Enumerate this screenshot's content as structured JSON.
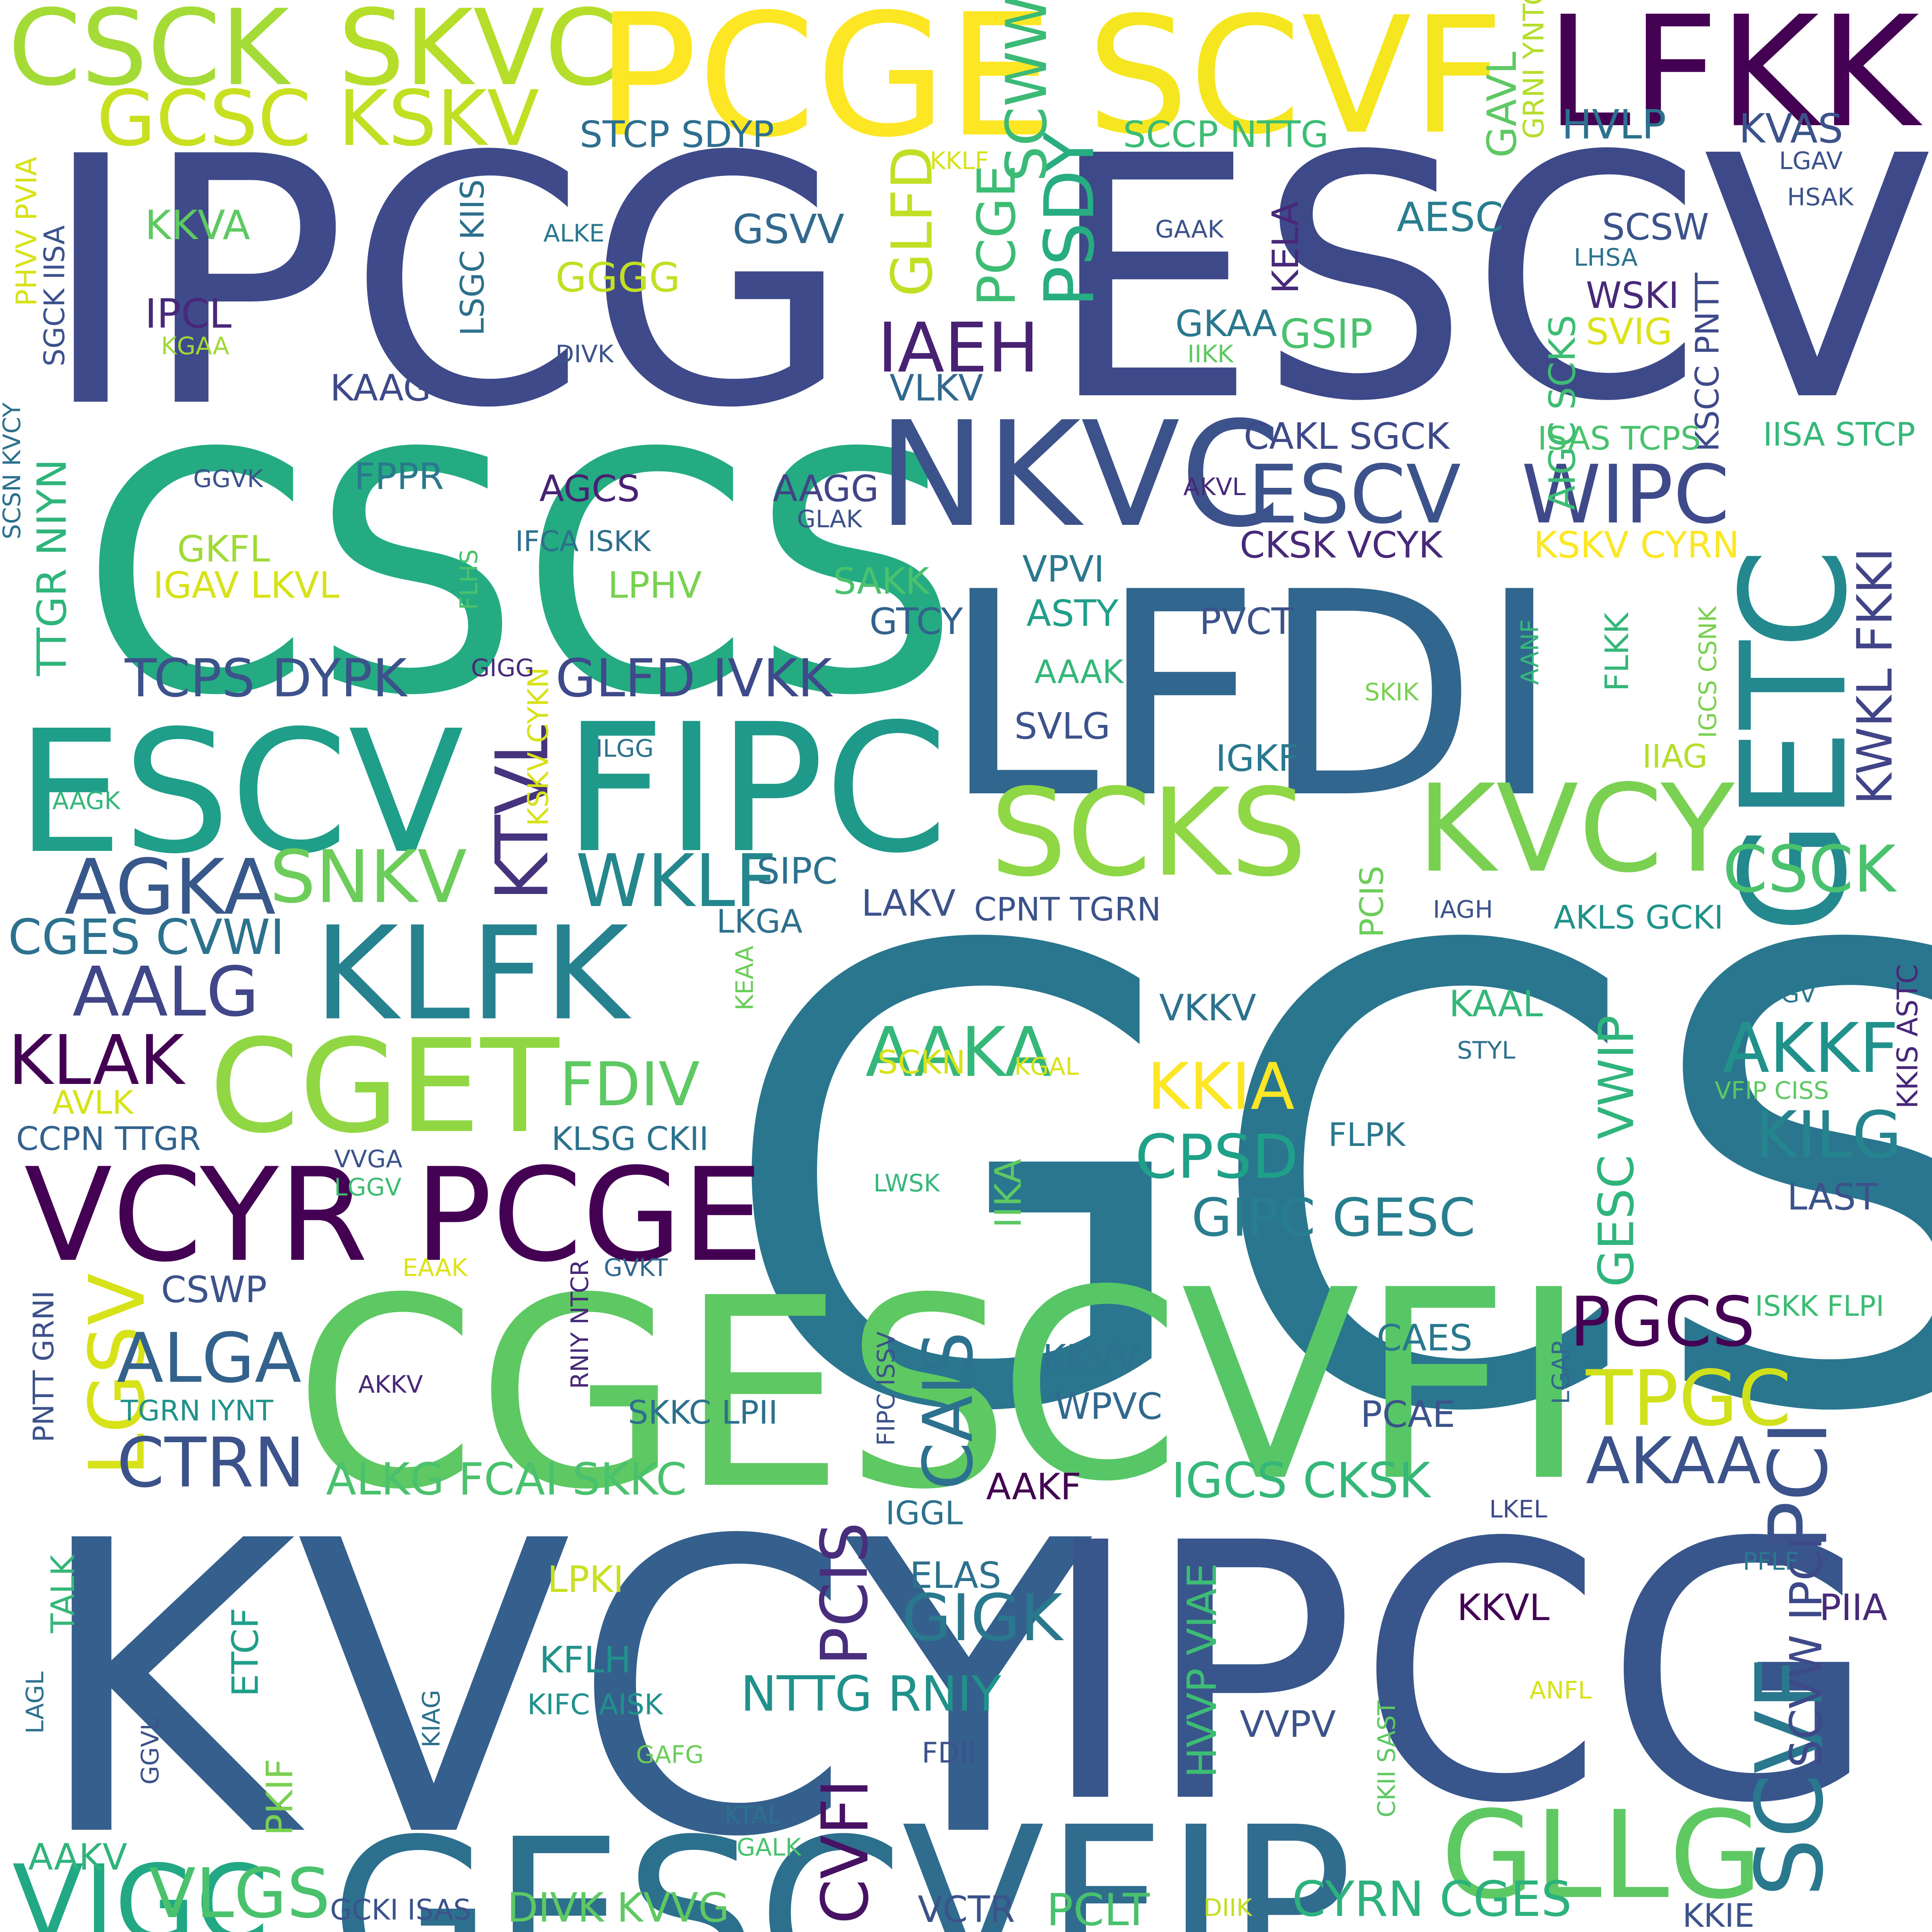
{
  "words": [
    {
      "text": "GCSC",
      "color": "#2a768e"
    },
    {
      "text": "KVCY",
      "color": "#355f8d"
    },
    {
      "text": "IPCG",
      "color": "#3e4a89"
    },
    {
      "text": "IPCG",
      "color": "#39568c"
    },
    {
      "text": "ESCV",
      "color": "#3e4989"
    },
    {
      "text": "CSCS",
      "color": "#25ab82"
    },
    {
      "text": "LFDI",
      "color": "#31668e"
    },
    {
      "text": "CGES",
      "color": "#5ec962"
    },
    {
      "text": "CVFI",
      "color": "#56c667"
    },
    {
      "text": "GESC",
      "color": "#2d708e"
    },
    {
      "text": "VFIP",
      "color": "#2f6c8e"
    },
    {
      "text": "PCGE",
      "color": "#fde725"
    },
    {
      "text": "SCVF",
      "color": "#f6e620"
    },
    {
      "text": "LFKK",
      "color": "#440154"
    },
    {
      "text": "CSCK",
      "color": "#a5db36"
    },
    {
      "text": "SKVC",
      "color": "#b5de2b"
    },
    {
      "text": "ESCV",
      "color": "#1f9e89"
    },
    {
      "text": "FIPC",
      "color": "#1f998a"
    },
    {
      "text": "NKVC",
      "color": "#3b528b"
    },
    {
      "text": "GETC",
      "color": "#23898e"
    },
    {
      "text": "SCKS",
      "color": "#8fd744"
    },
    {
      "text": "KVCY",
      "color": "#7ad151"
    },
    {
      "text": "KLFK",
      "color": "#26828e"
    },
    {
      "text": "CGET",
      "color": "#90d743"
    },
    {
      "text": "VCYR",
      "color": "#440154"
    },
    {
      "text": "PCGE",
      "color": "#440154"
    },
    {
      "text": "GLLG",
      "color": "#5ec962"
    },
    {
      "text": "VIGC",
      "color": "#22a884"
    },
    {
      "text": "SCVF",
      "color": "#2a788e"
    },
    {
      "text": "IPCI",
      "color": "#3b528b"
    },
    {
      "text": "ESCV",
      "color": "#3b528b"
    },
    {
      "text": "WIPC",
      "color": "#3e4a89"
    },
    {
      "text": "GCSC",
      "color": "#c8e020"
    },
    {
      "text": "KSKV",
      "color": "#c2df23"
    },
    {
      "text": "AGKA",
      "color": "#38588c"
    },
    {
      "text": "SNKV",
      "color": "#6ccd5a"
    },
    {
      "text": "WKLF",
      "color": "#24878e"
    },
    {
      "text": "KTVL",
      "color": "#46337e"
    },
    {
      "text": "PSDY",
      "color": "#27ad81"
    },
    {
      "text": "SCWW",
      "color": "#3aba76"
    },
    {
      "text": "GLFD",
      "color": "#c0df25"
    },
    {
      "text": "PCGE",
      "color": "#3dbc74"
    },
    {
      "text": "IAEH",
      "color": "#482173"
    },
    {
      "text": "AALG",
      "color": "#404688"
    },
    {
      "text": "KLAK",
      "color": "#440154"
    },
    {
      "text": "LGSV",
      "color": "#d8e219"
    },
    {
      "text": "ALGA",
      "color": "#33638d"
    },
    {
      "text": "CTRN",
      "color": "#3b528b"
    },
    {
      "text": "AAKA",
      "color": "#35b779"
    },
    {
      "text": "FDIV",
      "color": "#5ec962"
    },
    {
      "text": "KKIA",
      "color": "#fde725"
    },
    {
      "text": "CPSD",
      "color": "#1fa088"
    },
    {
      "text": "GIPC GESC",
      "color": "#287d8e"
    },
    {
      "text": "TPGC",
      "color": "#d0e11c"
    },
    {
      "text": "PGCS",
      "color": "#440154"
    },
    {
      "text": "CAIS",
      "color": "#2c728e"
    },
    {
      "text": "PCIS",
      "color": "#472d7b"
    },
    {
      "text": "CVFI",
      "color": "#471164"
    },
    {
      "text": "GIGK",
      "color": "#2a788e"
    },
    {
      "text": "NTTG RNIY",
      "color": "#21918c"
    },
    {
      "text": "AKKF",
      "color": "#21918c"
    },
    {
      "text": "KILG",
      "color": "#25848e"
    },
    {
      "text": "AKAA",
      "color": "#3b528b"
    },
    {
      "text": "CSCK",
      "color": "#4ac16d"
    },
    {
      "text": "KWKL FKKI",
      "color": "#414487"
    },
    {
      "text": "GESC VWIP",
      "color": "#2fb47c"
    },
    {
      "text": "SCVW IPCI",
      "color": "#3e4989"
    },
    {
      "text": "HVVP VIAE",
      "color": "#3dbc74"
    },
    {
      "text": "TCPS DYPK",
      "color": "#3b528b"
    },
    {
      "text": "GLFD IVKK",
      "color": "#3e4a89"
    },
    {
      "text": "CGES CVWI",
      "color": "#2c728e"
    },
    {
      "text": "ALKG FCAI SKKC",
      "color": "#4ac16d"
    },
    {
      "text": "IGCS CKSK",
      "color": "#35b779"
    },
    {
      "text": "CYRN CGES",
      "color": "#2db27d"
    },
    {
      "text": "DIVK KVVG",
      "color": "#5ec962"
    },
    {
      "text": "VLGS",
      "color": "#4ac16d"
    },
    {
      "text": "PCLT",
      "color": "#4ac16d"
    },
    {
      "text": "CKSK VCYK",
      "color": "#482878"
    },
    {
      "text": "KSKV CYRN",
      "color": "#fde725"
    },
    {
      "text": "CAKL SGCK",
      "color": "#3e4989"
    },
    {
      "text": "AIGC SCKS",
      "color": "#3dbc74"
    },
    {
      "text": "STCP SDYP",
      "color": "#2e6e8e"
    },
    {
      "text": "SCCP NTTG",
      "color": "#3dbc74"
    },
    {
      "text": "HVLP",
      "color": "#2c728e"
    },
    {
      "text": "KVAS",
      "color": "#3b528b"
    },
    {
      "text": "GAVL",
      "color": "#5ec962"
    },
    {
      "text": "GRNI YNTC",
      "color": "#b5de2b"
    },
    {
      "text": "AESC",
      "color": "#287d8e"
    },
    {
      "text": "SCSW",
      "color": "#3b528b"
    },
    {
      "text": "WSKI",
      "color": "#482878"
    },
    {
      "text": "SVIG",
      "color": "#dde318"
    },
    {
      "text": "KSCC PNTT",
      "color": "#3e4a89"
    },
    {
      "text": "GSIP",
      "color": "#4ac16d"
    },
    {
      "text": "GKAA",
      "color": "#2a788e"
    },
    {
      "text": "KELA",
      "color": "#482878"
    },
    {
      "text": "ISAS TCPS",
      "color": "#4ac16d"
    },
    {
      "text": "IISA STCP",
      "color": "#35b779"
    },
    {
      "text": "GSVV",
      "color": "#31688e"
    },
    {
      "text": "GGGG",
      "color": "#c2df23"
    },
    {
      "text": "KKVA",
      "color": "#5ec962"
    },
    {
      "text": "IPCL",
      "color": "#482878"
    },
    {
      "text": "LSGC KIIS",
      "color": "#2d708e"
    },
    {
      "text": "KAAG",
      "color": "#3e4989"
    },
    {
      "text": "VLKV",
      "color": "#31688e"
    },
    {
      "text": "FPPR",
      "color": "#2a788e"
    },
    {
      "text": "AGCS",
      "color": "#482173"
    },
    {
      "text": "AAGG",
      "color": "#414487"
    },
    {
      "text": "GKFL",
      "color": "#a0da39"
    },
    {
      "text": "IGAV LKVL",
      "color": "#d8e219"
    },
    {
      "text": "IFCA ISKK",
      "color": "#2d708e"
    },
    {
      "text": "LPHV",
      "color": "#7ad151"
    },
    {
      "text": "SAKK",
      "color": "#4ac16d"
    },
    {
      "text": "VPVI",
      "color": "#2a788e"
    },
    {
      "text": "ASTY",
      "color": "#1f9e89"
    },
    {
      "text": "PVCT",
      "color": "#3b528b"
    },
    {
      "text": "GTCY",
      "color": "#33638d"
    },
    {
      "text": "AAAK",
      "color": "#35b779"
    },
    {
      "text": "SVLG",
      "color": "#3b528b"
    },
    {
      "text": "IGKF",
      "color": "#2a788e"
    },
    {
      "text": "FLKK",
      "color": "#35b779"
    },
    {
      "text": "IIAG",
      "color": "#b5de2b"
    },
    {
      "text": "IGCS CSNK",
      "color": "#7ad151"
    },
    {
      "text": "PCIS",
      "color": "#6ccd5a"
    },
    {
      "text": "SIPC",
      "color": "#2c728e"
    },
    {
      "text": "LKGA",
      "color": "#2d708e"
    },
    {
      "text": "LAKV",
      "color": "#3b528b"
    },
    {
      "text": "CPNT TGRN",
      "color": "#3b528b"
    },
    {
      "text": "AKLS GCKI",
      "color": "#21918c"
    },
    {
      "text": "KKIS ASTC",
      "color": "#482878"
    },
    {
      "text": "IGGV",
      "color": "#2a788e"
    },
    {
      "text": "VFIP CISS",
      "color": "#5ec962"
    },
    {
      "text": "LAST",
      "color": "#3b528b"
    },
    {
      "text": "KAAL",
      "color": "#35b779"
    },
    {
      "text": "STYL",
      "color": "#2c728e"
    },
    {
      "text": "VKKV",
      "color": "#2c728e"
    },
    {
      "text": "SCKN",
      "color": "#d8e219"
    },
    {
      "text": "FLPK",
      "color": "#2a788e"
    },
    {
      "text": "IIKA",
      "color": "#5ec962"
    },
    {
      "text": "KLSG CKII",
      "color": "#2c728e"
    },
    {
      "text": "CCPN TTGR",
      "color": "#33638d"
    },
    {
      "text": "AVLK",
      "color": "#d8e219"
    },
    {
      "text": "CSWP",
      "color": "#3b528b"
    },
    {
      "text": "ISKK FLPI",
      "color": "#3dbc74"
    },
    {
      "text": "CAES",
      "color": "#2a788e"
    },
    {
      "text": "KKVV",
      "color": "#2c728e"
    },
    {
      "text": "WPVC",
      "color": "#31688e"
    },
    {
      "text": "PCAE",
      "color": "#3b528b"
    },
    {
      "text": "LGAP",
      "color": "#31688e"
    },
    {
      "text": "SKKC LPII",
      "color": "#2d708e"
    },
    {
      "text": "TGRN IYNT",
      "color": "#21918c"
    },
    {
      "text": "PNTT GRNI",
      "color": "#3b528b"
    },
    {
      "text": "RNIY NTCR",
      "color": "#482878"
    },
    {
      "text": "FIPC ISSV",
      "color": "#3b528b"
    },
    {
      "text": "AAKF",
      "color": "#440154"
    },
    {
      "text": "IGGL",
      "color": "#2c728e"
    },
    {
      "text": "LKEL",
      "color": "#3e4989"
    },
    {
      "text": "ELAS",
      "color": "#2c728e"
    },
    {
      "text": "KKVL",
      "color": "#440154"
    },
    {
      "text": "PIIA",
      "color": "#482878"
    },
    {
      "text": "PFLF",
      "color": "#2a788e"
    },
    {
      "text": "ANFL",
      "color": "#d8e219"
    },
    {
      "text": "VVPV",
      "color": "#3b528b"
    },
    {
      "text": "CKII SAST",
      "color": "#5ec962"
    },
    {
      "text": "KKIE",
      "color": "#3b528b"
    },
    {
      "text": "LPKI",
      "color": "#c8e020"
    },
    {
      "text": "KFLH",
      "color": "#21918c"
    },
    {
      "text": "KIFC AISK",
      "color": "#21918c"
    },
    {
      "text": "ETCF",
      "color": "#1f9e89"
    },
    {
      "text": "TALK",
      "color": "#35b779"
    },
    {
      "text": "LAGL",
      "color": "#2c728e"
    },
    {
      "text": "GGVL",
      "color": "#3b528b"
    },
    {
      "text": "KIAG",
      "color": "#2d708e"
    },
    {
      "text": "PKIF",
      "color": "#7ad151"
    },
    {
      "text": "AAKV",
      "color": "#2fb47c"
    },
    {
      "text": "GAFG",
      "color": "#6ccd5a"
    },
    {
      "text": "FDII",
      "color": "#3b528b"
    },
    {
      "text": "KTAL",
      "color": "#2c728e"
    },
    {
      "text": "GALK",
      "color": "#4ac16d"
    },
    {
      "text": "GCKI ISAS",
      "color": "#3b528b"
    },
    {
      "text": "VCTR",
      "color": "#3b528b"
    },
    {
      "text": "DIIK",
      "color": "#c2df23"
    },
    {
      "text": "AKKV",
      "color": "#482878"
    },
    {
      "text": "EAAK",
      "color": "#dde318"
    },
    {
      "text": "GVKT",
      "color": "#31688e"
    },
    {
      "text": "VVGA",
      "color": "#3b528b"
    },
    {
      "text": "LGGV",
      "color": "#3dbc74"
    },
    {
      "text": "LWSK",
      "color": "#35b779"
    },
    {
      "text": "KGAL",
      "color": "#d8e219"
    },
    {
      "text": "KEAA",
      "color": "#6ccd5a"
    },
    {
      "text": "IAGH",
      "color": "#3b528b"
    },
    {
      "text": "KSKV CYKN",
      "color": "#d8e219"
    },
    {
      "text": "SKIK",
      "color": "#7ad151"
    },
    {
      "text": "AANF",
      "color": "#35b779"
    },
    {
      "text": "GIGG",
      "color": "#482878"
    },
    {
      "text": "FLHS",
      "color": "#4ac16d"
    },
    {
      "text": "ILGG",
      "color": "#2c728e"
    },
    {
      "text": "AAGK",
      "color": "#35b779"
    },
    {
      "text": "GLAK",
      "color": "#3b528b"
    },
    {
      "text": "AKVL",
      "color": "#482878"
    },
    {
      "text": "GGVK",
      "color": "#3b528b"
    },
    {
      "text": "DIVK",
      "color": "#3b528b"
    },
    {
      "text": "IIKK",
      "color": "#5ec962"
    },
    {
      "text": "GAAK",
      "color": "#3b528b"
    },
    {
      "text": "ALKE",
      "color": "#2a788e"
    },
    {
      "text": "KKLF",
      "color": "#d8e219"
    },
    {
      "text": "KGAA",
      "color": "#a0da39"
    },
    {
      "text": "LGAV",
      "color": "#3b528b"
    },
    {
      "text": "HSAK",
      "color": "#3b528b"
    },
    {
      "text": "LHSA",
      "color": "#2c728e"
    },
    {
      "text": "TTGR NIYN",
      "color": "#2fb47c"
    },
    {
      "text": "SCSN KVCY",
      "color": "#2c728e"
    },
    {
      "text": "SGCK IISA",
      "color": "#3b528b"
    },
    {
      "text": "PHVV PVIA",
      "color": "#d8e219"
    }
  ]
}
